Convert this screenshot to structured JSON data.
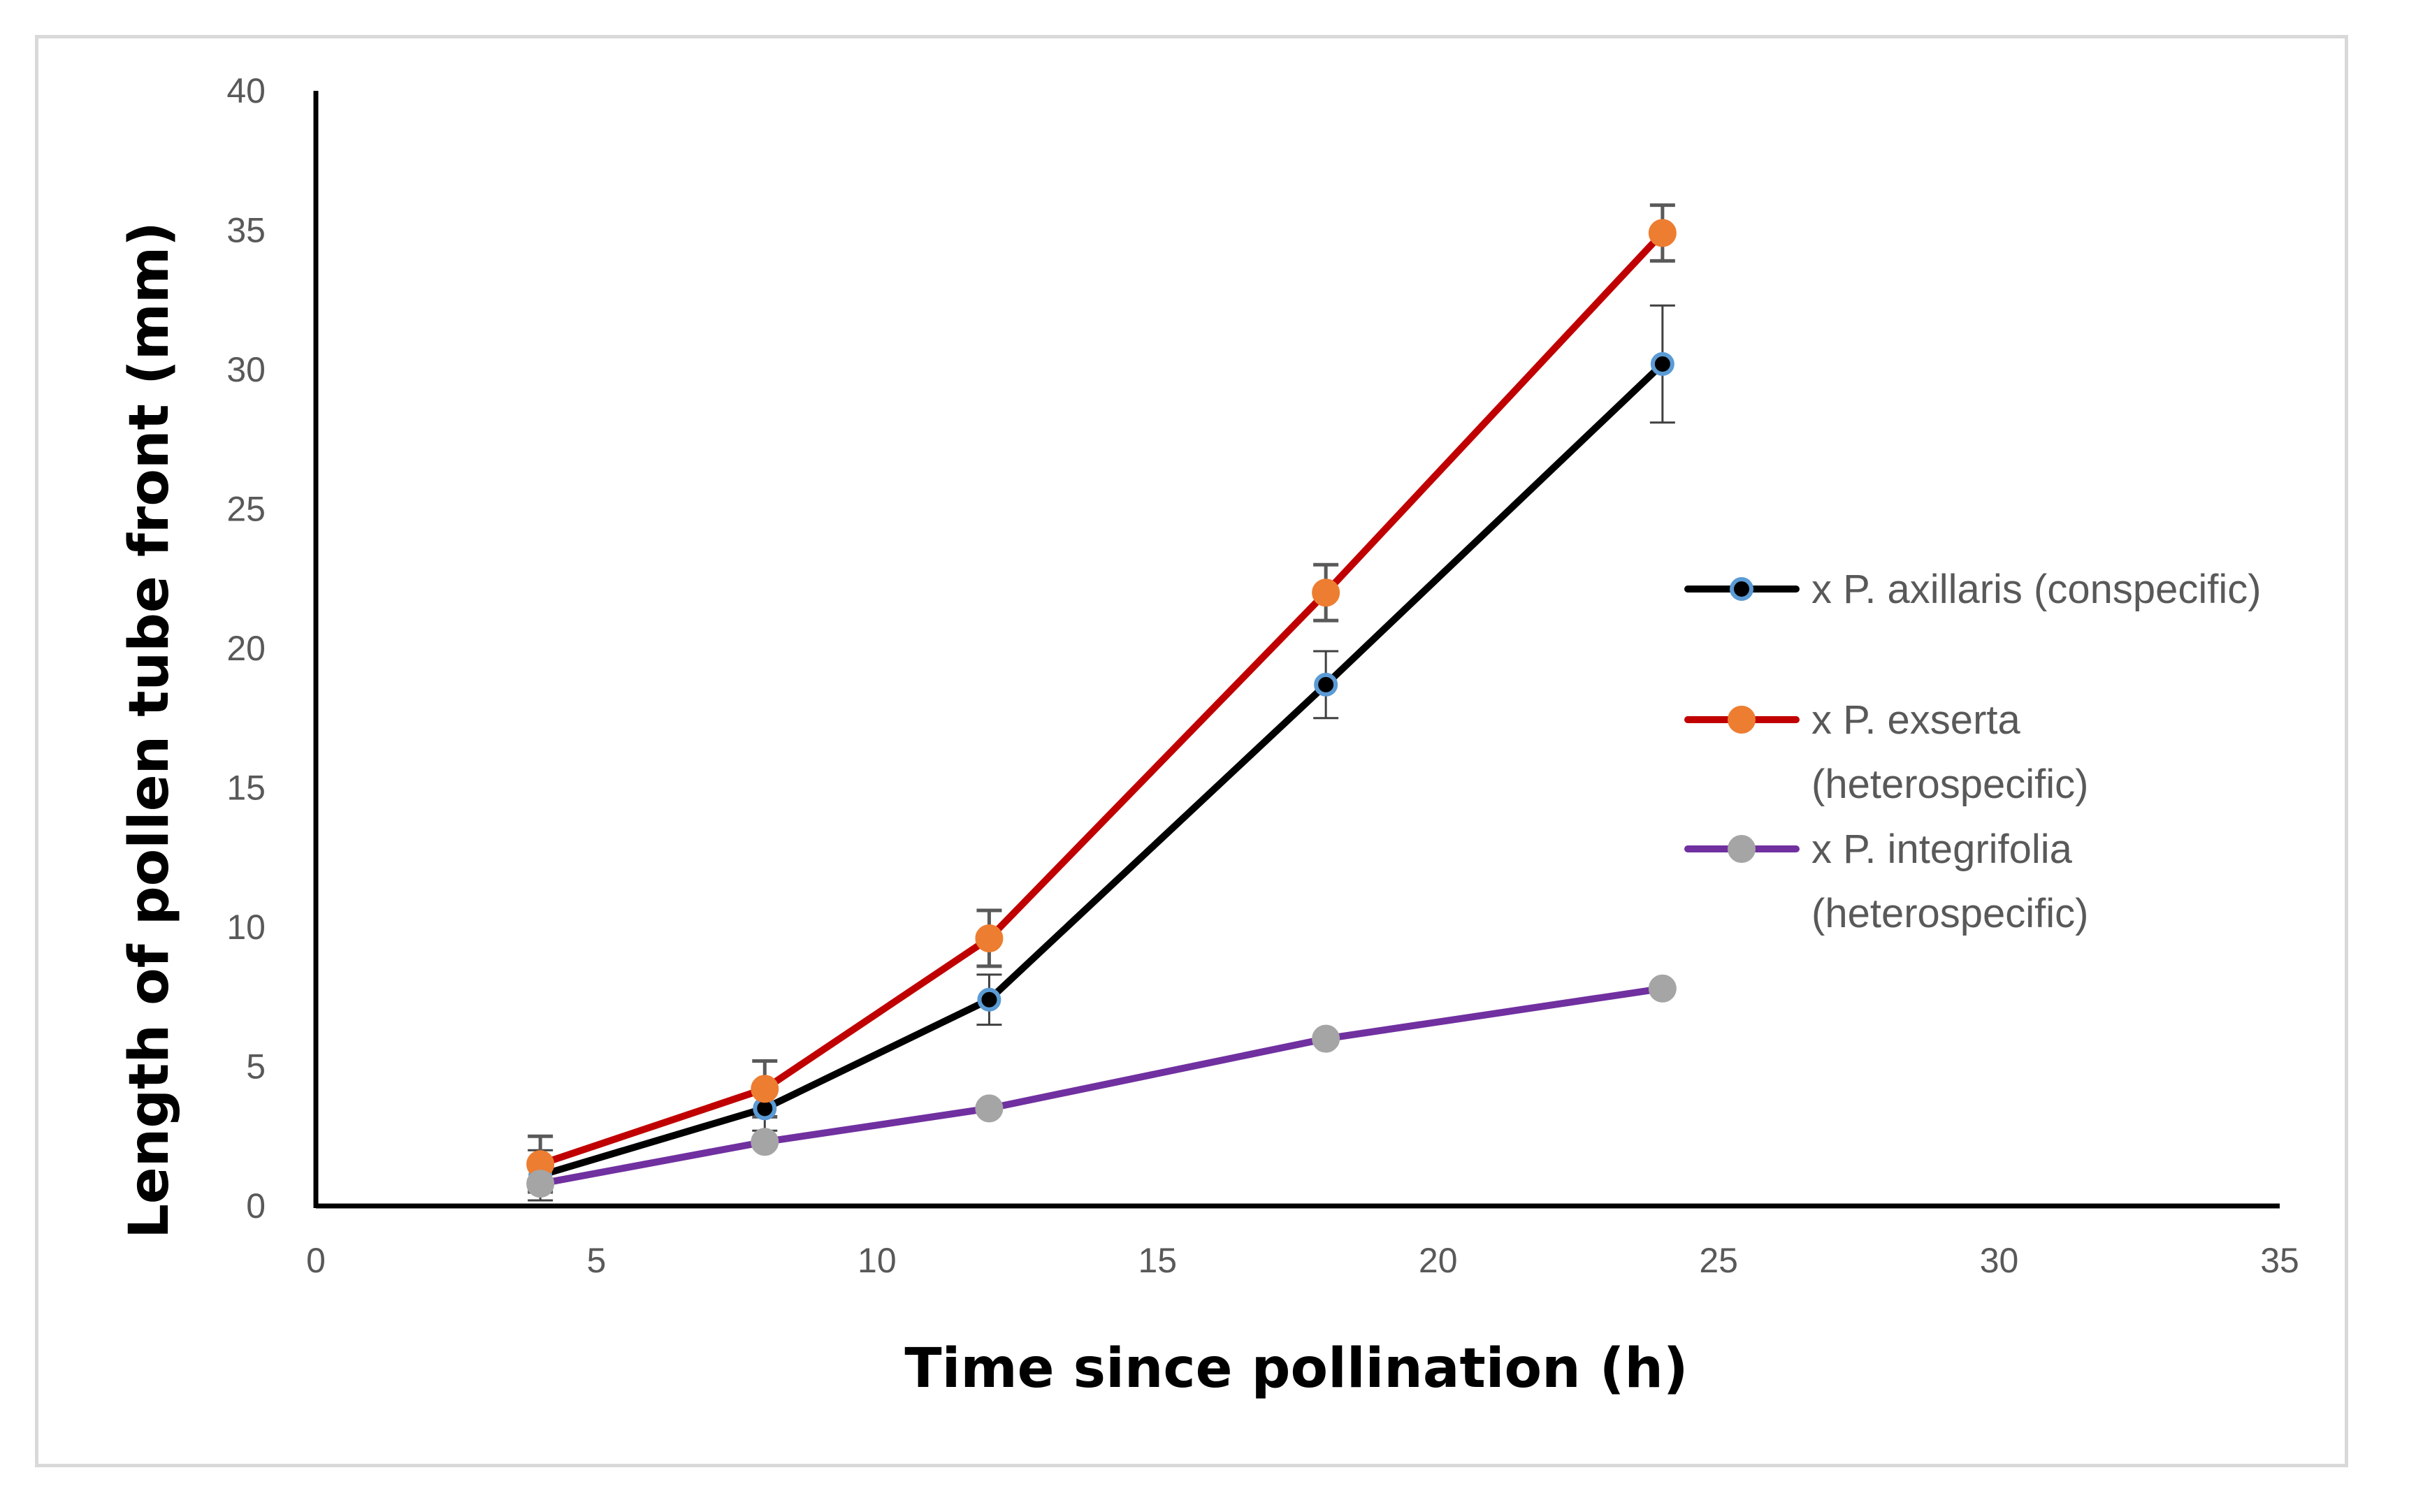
{
  "chart_data": {
    "type": "line",
    "title": "",
    "xlabel": "Time since pollination (h)",
    "ylabel": "Length of pollen tube front (mm)",
    "xlim": [
      0,
      35
    ],
    "ylim": [
      0,
      40
    ],
    "xticks": [
      0,
      5,
      10,
      15,
      20,
      25,
      30,
      35
    ],
    "yticks": [
      0,
      5,
      10,
      15,
      20,
      25,
      30,
      35,
      40
    ],
    "grid": false,
    "legend_position": "right",
    "series": [
      {
        "name": "x P. axillaris (conspecific)",
        "legend_lines": [
          "x P. axillaris (conspecific)"
        ],
        "line_color": "#000000",
        "marker_fill": "#000000",
        "marker_edge": "#5b9bd5",
        "x": [
          4,
          8,
          12,
          18,
          24
        ],
        "y": [
          1.1,
          3.5,
          7.4,
          18.7,
          30.2
        ],
        "err": [
          0.9,
          0.8,
          0.9,
          1.2,
          2.1
        ]
      },
      {
        "name": "x P. exserta (heterospecific)",
        "legend_lines": [
          "x P. exserta",
          "(heterospecific)"
        ],
        "line_color": "#c00000",
        "marker_fill": "#ed7d31",
        "marker_edge": "#ed7d31",
        "x": [
          4,
          8,
          12,
          18,
          24
        ],
        "y": [
          1.5,
          4.2,
          9.6,
          22.0,
          34.9
        ],
        "err": [
          1.0,
          1.0,
          1.0,
          1.0,
          1.0
        ]
      },
      {
        "name": "x P. integrifolia (heterospecific)",
        "legend_lines": [
          "x P. integrifolia",
          "(heterospecific)"
        ],
        "line_color": "#7030a0",
        "marker_fill": "#a5a5a5",
        "marker_edge": "#a5a5a5",
        "x": [
          4,
          8,
          12,
          18,
          24
        ],
        "y": [
          0.8,
          2.3,
          3.5,
          6.0,
          7.8
        ],
        "err": null
      }
    ]
  }
}
